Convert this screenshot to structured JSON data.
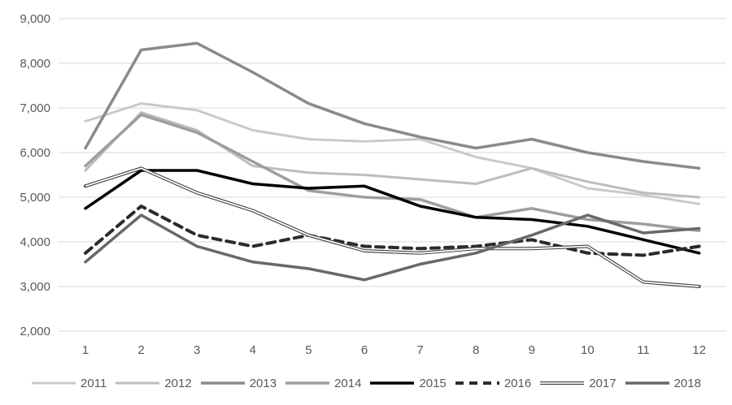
{
  "chart_data": {
    "type": "line",
    "title": "",
    "xlabel": "",
    "ylabel": "",
    "x_labels": [
      "1",
      "2",
      "3",
      "4",
      "5",
      "6",
      "7",
      "8",
      "9",
      "10",
      "11",
      "12"
    ],
    "ylim": [
      2000,
      9000
    ],
    "ytick_step": 1000,
    "ytick_labels": [
      "2,000",
      "3,000",
      "4,000",
      "5,000",
      "6,000",
      "7,000",
      "8,000",
      "9,000"
    ],
    "grid": true,
    "gridline_color": "#d9d9d9",
    "text_color": "#595959",
    "legend_position": "bottom",
    "series": [
      {
        "name": "2011",
        "color": "#c9c9c9",
        "style": "solid",
        "width": 3,
        "values": [
          6700,
          7100,
          6950,
          6500,
          6300,
          6250,
          6300,
          5900,
          5650,
          5200,
          5050,
          4850
        ]
      },
      {
        "name": "2012",
        "color": "#bdbdbd",
        "style": "solid",
        "width": 3,
        "values": [
          5600,
          6900,
          6500,
          5700,
          5550,
          5500,
          5400,
          5300,
          5650,
          5350,
          5100,
          5000
        ]
      },
      {
        "name": "2013",
        "color": "#8a8a8a",
        "style": "solid",
        "width": 3.5,
        "values": [
          6100,
          8300,
          8450,
          7800,
          7100,
          6650,
          6350,
          6100,
          6300,
          6000,
          5800,
          5650
        ]
      },
      {
        "name": "2014",
        "color": "#9e9e9e",
        "style": "solid",
        "width": 3.5,
        "values": [
          5700,
          6850,
          6450,
          5800,
          5150,
          5000,
          4950,
          4550,
          4750,
          4500,
          4400,
          4250
        ]
      },
      {
        "name": "2015",
        "color": "#000000",
        "style": "solid",
        "width": 3.5,
        "values": [
          4750,
          5600,
          5600,
          5300,
          5200,
          5250,
          4800,
          4550,
          4500,
          4350,
          4050,
          3750
        ]
      },
      {
        "name": "2016",
        "color": "#2b2b2b",
        "style": "dashed",
        "width": 4,
        "values": [
          3750,
          4800,
          4150,
          3900,
          4150,
          3900,
          3850,
          3900,
          4050,
          3750,
          3700,
          3900
        ]
      },
      {
        "name": "2017",
        "color": "#3d3d3d",
        "style": "double",
        "width": 4,
        "values": [
          5250,
          5650,
          5100,
          4700,
          4150,
          3800,
          3750,
          3850,
          3850,
          3900,
          3100,
          3000
        ]
      },
      {
        "name": "2018",
        "color": "#686868",
        "style": "solid",
        "width": 3.5,
        "values": [
          3550,
          4600,
          3900,
          3550,
          3400,
          3150,
          3500,
          3750,
          4150,
          4600,
          4200,
          4300
        ]
      }
    ]
  }
}
